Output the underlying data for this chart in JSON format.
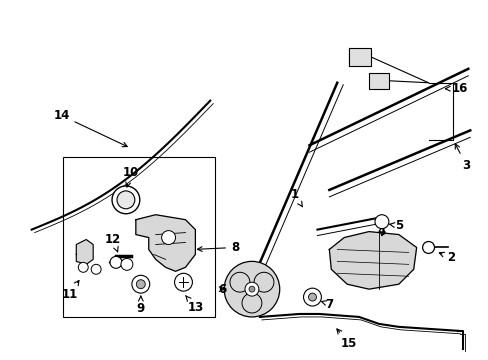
{
  "bg_color": "#ffffff",
  "line_color": "#000000",
  "fig_width": 4.89,
  "fig_height": 3.6,
  "dpi": 100,
  "label_fontsize": 8.5
}
